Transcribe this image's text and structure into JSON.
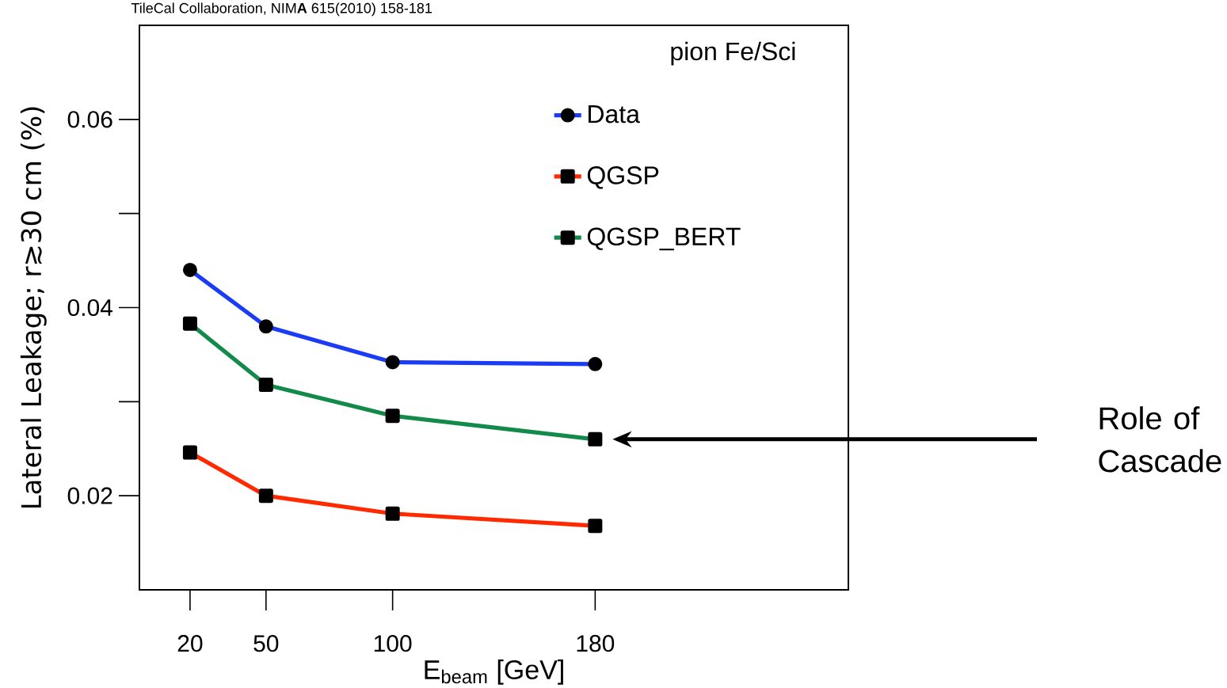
{
  "chart_data": {
    "type": "line",
    "xlabel": "E$_{beam}$ [GeV]",
    "ylabel": "Lateral Leakage; r≳30 cm (%)",
    "legend_title": "pion Fe/Sci",
    "x": [
      20,
      50,
      100,
      180
    ],
    "series": [
      {
        "name": "Data",
        "color": "#1a3cf5",
        "marker": "circle",
        "values": [
          0.044,
          0.038,
          0.0342,
          0.034
        ]
      },
      {
        "name": "QGSP",
        "color": "#ff2a00",
        "marker": "square",
        "values": [
          0.0246,
          0.02,
          0.0181,
          0.0168
        ]
      },
      {
        "name": "QGSP_BERT",
        "color": "#128a4a",
        "marker": "square",
        "values": [
          0.0383,
          0.0318,
          0.0285,
          0.026
        ]
      }
    ],
    "xlim": [
      0,
      280
    ],
    "ylim": [
      0.01,
      0.07
    ],
    "xticks": [
      20,
      50,
      100,
      180
    ],
    "yticks": [
      0.02,
      0.04,
      0.06
    ],
    "legend": "top right",
    "annotations": [
      "TileCal Collaboration, NIM**A** 615(2010) 158-181",
      "Role of Cascade"
    ]
  }
}
